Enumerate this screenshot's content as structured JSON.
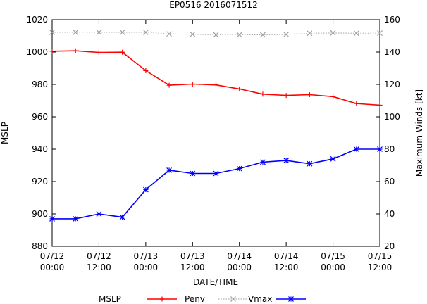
{
  "chart_data": {
    "type": "line",
    "title": "EP0516 2016071512",
    "xlabel": "DATE/TIME",
    "ylabel": "MSLP",
    "y2label": "Maximum Winds [kt]",
    "x_ticks": [
      [
        "07/12",
        "00:00"
      ],
      [
        "07/12",
        "12:00"
      ],
      [
        "07/13",
        "00:00"
      ],
      [
        "07/13",
        "12:00"
      ],
      [
        "07/14",
        "00:00"
      ],
      [
        "07/14",
        "12:00"
      ],
      [
        "07/15",
        "00:00"
      ],
      [
        "07/15",
        "12:00"
      ]
    ],
    "xlim": [
      0,
      84
    ],
    "ylim": [
      880,
      1020
    ],
    "y_ticks": [
      880,
      900,
      920,
      940,
      960,
      980,
      1000,
      1020
    ],
    "y2lim": [
      20,
      160
    ],
    "y2_ticks": [
      20,
      40,
      60,
      80,
      100,
      120,
      140,
      160
    ],
    "x_hours": [
      0,
      6,
      12,
      18,
      24,
      30,
      36,
      42,
      48,
      54,
      60,
      66,
      72,
      78,
      84
    ],
    "series": [
      {
        "name": "MSLP",
        "axis": "y",
        "color": "#ff0000",
        "marker": "plus",
        "values": [
          1000.5,
          1000.8,
          999.8,
          999.9,
          988.5,
          979.5,
          980.2,
          979.7,
          977.2,
          974.0,
          973.2,
          973.7,
          972.5,
          968.2,
          967.2
        ]
      },
      {
        "name": "Penv",
        "axis": "y",
        "color": "#a0a0a0",
        "marker": "cross",
        "dashed": true,
        "values": [
          1012.2,
          1012.2,
          1012.2,
          1012.2,
          1012.2,
          1011.2,
          1011.0,
          1010.7,
          1010.7,
          1010.7,
          1010.9,
          1011.6,
          1011.8,
          1011.6,
          1011.7
        ]
      },
      {
        "name": "Vmax",
        "axis": "y2",
        "color": "#0000ff",
        "marker": "star",
        "values": [
          37,
          37,
          40,
          38,
          55,
          67,
          65,
          65,
          68,
          72,
          73,
          71,
          74,
          80,
          80
        ]
      }
    ],
    "legend": {
      "placement": "bottom"
    },
    "grid": false
  }
}
